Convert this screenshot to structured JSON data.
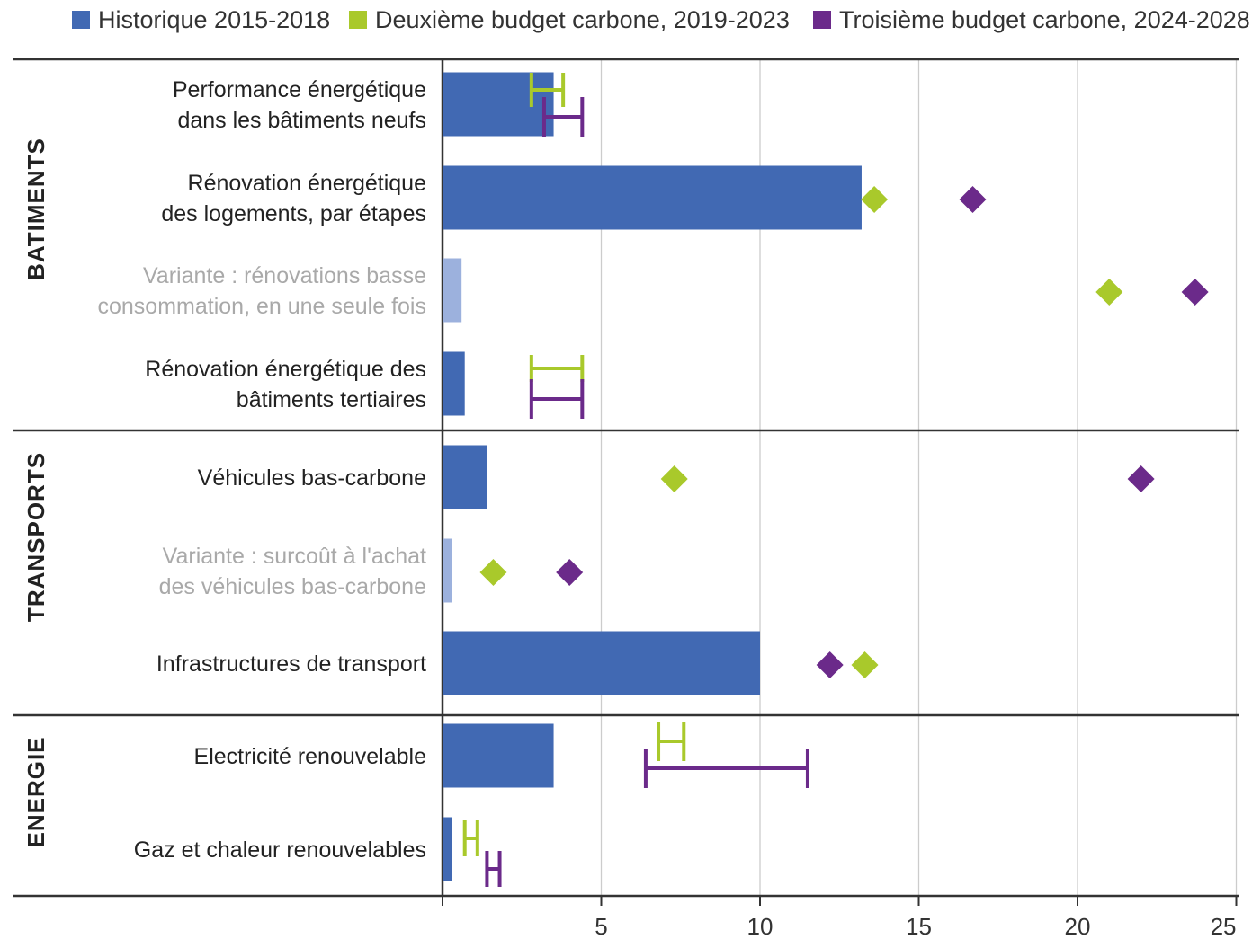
{
  "legend": {
    "historical": "Historique 2015-2018",
    "second_budget": "Deuxième budget carbone, 2019-2023",
    "third_budget": "Troisième budget carbone, 2024-2028"
  },
  "colors": {
    "historical": "#4169b3",
    "historical_variant": "#9cb1dd",
    "second_budget": "#a9c92b",
    "third_budget": "#6b2a8a",
    "axis": "#333333",
    "grid": "#cccccc"
  },
  "chart_data": {
    "type": "bar",
    "orientation": "horizontal",
    "xlim": [
      0,
      25
    ],
    "xticks": [
      "5",
      "10",
      "15",
      "20",
      "25"
    ],
    "grid": true,
    "legend_position": "top",
    "series": [
      {
        "name": "Historique 2015-2018",
        "values": [
          3.5,
          13.2,
          0.6,
          0.7,
          1.4,
          0.3,
          10.0,
          3.5,
          0.3
        ]
      },
      {
        "name": "Deuxième budget carbone, 2019-2023",
        "values": [
          [
            2.8,
            3.8
          ],
          13.6,
          21.0,
          [
            2.8,
            4.4
          ],
          7.3,
          1.6,
          13.3,
          [
            6.8,
            7.6
          ],
          [
            0.7,
            1.1
          ]
        ]
      },
      {
        "name": "Troisième budget carbone, 2024-2028",
        "values": [
          [
            3.2,
            4.4
          ],
          16.7,
          23.7,
          [
            2.8,
            4.4
          ],
          22.0,
          4.0,
          12.2,
          [
            6.4,
            11.5
          ],
          [
            1.4,
            1.8
          ]
        ]
      }
    ],
    "sections": [
      {
        "name": "BATIMENTS",
        "categories": [
          {
            "lines": [
              "Performance énergétique",
              "dans les bâtiments neufs"
            ],
            "variant": false
          },
          {
            "lines": [
              "Rénovation énergétique",
              "des logements, par étapes"
            ],
            "variant": false
          },
          {
            "lines": [
              "Variante : rénovations basse",
              "consommation, en une seule fois"
            ],
            "variant": true
          },
          {
            "lines": [
              "Rénovation énergétique des",
              "bâtiments tertiaires"
            ],
            "variant": false
          }
        ]
      },
      {
        "name": "TRANSPORTS",
        "categories": [
          {
            "lines": [
              "Véhicules bas-carbone"
            ],
            "variant": false
          },
          {
            "lines": [
              "Variante : surcoût à l'achat",
              "des véhicules bas-carbone"
            ],
            "variant": true
          },
          {
            "lines": [
              "Infrastructures de transport"
            ],
            "variant": false
          }
        ]
      },
      {
        "name": "ENERGIE",
        "categories": [
          {
            "lines": [
              "Electricité renouvelable"
            ],
            "variant": false
          },
          {
            "lines": [
              "Gaz et chaleur renouvelables"
            ],
            "variant": false
          }
        ]
      }
    ]
  }
}
